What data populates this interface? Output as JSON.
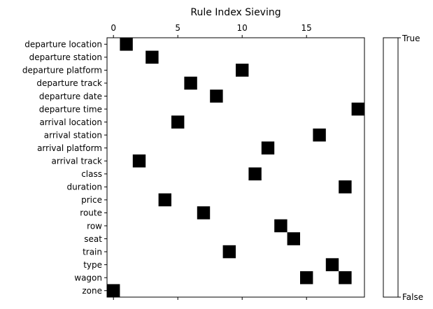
{
  "chart_data": {
    "type": "heatmap",
    "title": "Rule Index Sieving",
    "xlabel": "",
    "ylabel": "",
    "x_axis_position": "top",
    "x_range": [
      -0.5,
      19.5
    ],
    "x_ticks": [
      0,
      5,
      10,
      15
    ],
    "x_tick_labels": [
      "0",
      "5",
      "10",
      "15"
    ],
    "rows": [
      "departure location",
      "departure station",
      "departure platform",
      "departure track",
      "departure date",
      "departure time",
      "arrival location",
      "arrival station",
      "arrival platform",
      "arrival track",
      "class",
      "duration",
      "price",
      "route",
      "row",
      "seat",
      "train",
      "type",
      "wagon",
      "zone"
    ],
    "cells": [
      {
        "row": "departure location",
        "x": 1
      },
      {
        "row": "departure station",
        "x": 3
      },
      {
        "row": "departure platform",
        "x": 10
      },
      {
        "row": "departure track",
        "x": 6
      },
      {
        "row": "departure date",
        "x": 8
      },
      {
        "row": "departure time",
        "x": 19
      },
      {
        "row": "arrival location",
        "x": 5
      },
      {
        "row": "arrival station",
        "x": 16
      },
      {
        "row": "arrival platform",
        "x": 12
      },
      {
        "row": "arrival track",
        "x": 2
      },
      {
        "row": "class",
        "x": 11
      },
      {
        "row": "duration",
        "x": 18
      },
      {
        "row": "price",
        "x": 4
      },
      {
        "row": "route",
        "x": 7
      },
      {
        "row": "row",
        "x": 13
      },
      {
        "row": "seat",
        "x": 14
      },
      {
        "row": "train",
        "x": 9
      },
      {
        "row": "type",
        "x": 17
      },
      {
        "row": "wagon",
        "x": 15
      },
      {
        "row": "wagon",
        "x": 18
      },
      {
        "row": "zone",
        "x": 0
      }
    ],
    "colorbar": {
      "top_label": "True",
      "bottom_label": "False",
      "top_color": "#000000",
      "bottom_color": "#ffffff"
    },
    "grid": false,
    "legend": "none"
  }
}
